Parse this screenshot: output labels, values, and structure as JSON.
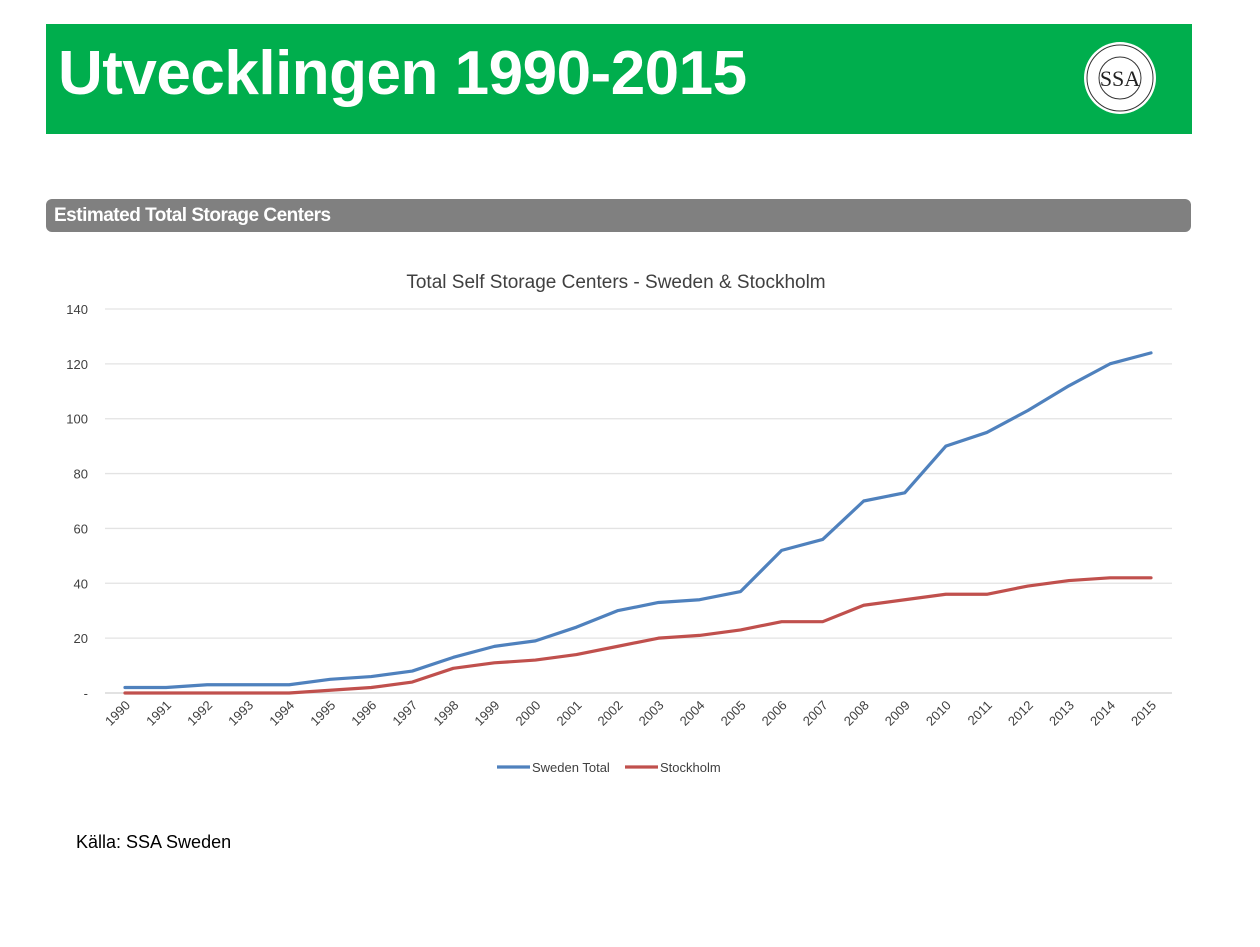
{
  "header": {
    "title": "Utvecklingen 1990-2015",
    "logo_text": "SELF STORAGE ASSOCIATION SWEDEN SSA"
  },
  "section": {
    "title": "Estimated Total Storage Centers"
  },
  "source": "Källa: SSA Sweden",
  "chart_data": {
    "type": "line",
    "title": "Total Self Storage Centers -  Sweden & Stockholm",
    "xlabel": "",
    "ylabel": "",
    "x": [
      "1990",
      "1991",
      "1992",
      "1993",
      "1994",
      "1995",
      "1996",
      "1997",
      "1998",
      "1999",
      "2000",
      "2001",
      "2002",
      "2003",
      "2004",
      "2005",
      "2006",
      "2007",
      "2008",
      "2009",
      "2010",
      "2011",
      "2012",
      "2013",
      "2014",
      "2015"
    ],
    "ylim": [
      0,
      140
    ],
    "yticks": [
      0,
      20,
      40,
      60,
      80,
      100,
      120,
      140
    ],
    "ytick_labels": [
      "-",
      "20",
      "40",
      "60",
      "80",
      "100",
      "120",
      "140"
    ],
    "grid": true,
    "legend_position": "bottom",
    "series": [
      {
        "name": "Sweden Total",
        "color": "#4f81bd",
        "values": [
          2,
          2,
          3,
          3,
          3,
          5,
          6,
          8,
          13,
          17,
          19,
          24,
          30,
          33,
          34,
          37,
          52,
          56,
          70,
          73,
          90,
          95,
          103,
          112,
          120,
          124
        ]
      },
      {
        "name": "Stockholm",
        "color": "#c0504d",
        "values": [
          0,
          0,
          0,
          0,
          0,
          1,
          2,
          4,
          9,
          11,
          12,
          14,
          17,
          20,
          21,
          23,
          26,
          26,
          32,
          34,
          36,
          36,
          39,
          41,
          42,
          42
        ]
      }
    ]
  }
}
